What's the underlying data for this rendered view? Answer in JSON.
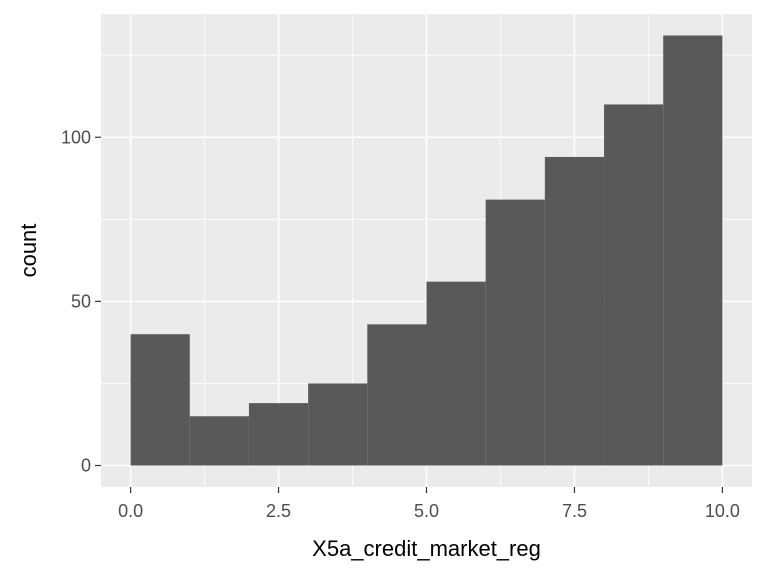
{
  "chart_data": {
    "type": "bar",
    "subtype": "histogram",
    "title": "",
    "xlabel": "X5a_credit_market_reg",
    "ylabel": "count",
    "bins": [
      {
        "start": 0,
        "end": 1,
        "count": 40
      },
      {
        "start": 1,
        "end": 2,
        "count": 15
      },
      {
        "start": 2,
        "end": 3,
        "count": 19
      },
      {
        "start": 3,
        "end": 4,
        "count": 25
      },
      {
        "start": 4,
        "end": 5,
        "count": 43
      },
      {
        "start": 5,
        "end": 6,
        "count": 56
      },
      {
        "start": 6,
        "end": 7,
        "count": 81
      },
      {
        "start": 7,
        "end": 8,
        "count": 94
      },
      {
        "start": 8,
        "end": 9,
        "count": 110
      },
      {
        "start": 9,
        "end": 10,
        "count": 131
      }
    ],
    "xlim": [
      -0.5,
      10.5
    ],
    "ylim": [
      -6.55,
      137.55
    ],
    "x_ticks": [
      0,
      2.5,
      5,
      7.5,
      10
    ],
    "x_tick_labels": [
      "0.0",
      "2.5",
      "5.0",
      "7.5",
      "10.0"
    ],
    "x_minor_ticks": [
      1.25,
      3.75,
      6.25,
      8.75
    ],
    "y_ticks": [
      0,
      50,
      100
    ],
    "y_tick_labels": [
      "0",
      "50",
      "100"
    ],
    "y_minor_ticks": [
      25,
      75,
      125
    ],
    "grid": true,
    "legend": "none",
    "colors": {
      "panel_background": "#EBEBEB",
      "grid": "#FFFFFF",
      "bar_fill": "#595959",
      "tick_label": "#4D4D4D",
      "axis_title": "#000000"
    }
  }
}
